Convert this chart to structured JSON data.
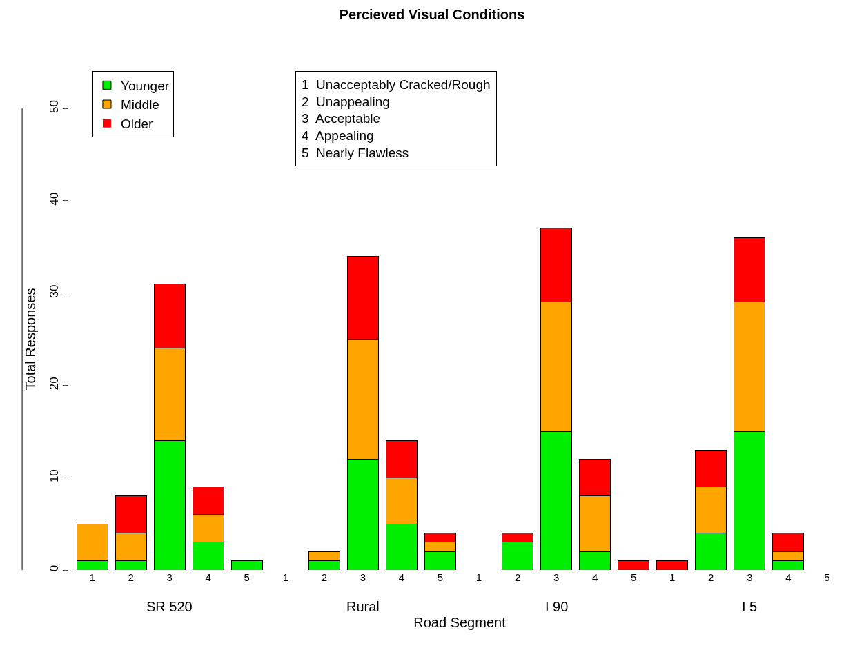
{
  "chart_data": {
    "type": "bar",
    "title": "Percieved Visual Conditions",
    "xlabel": "Road Segment",
    "ylabel": "Total Responses",
    "categories": [
      "1",
      "2",
      "3",
      "4",
      "5",
      "1",
      "2",
      "3",
      "4",
      "5",
      "1",
      "2",
      "3",
      "4",
      "5",
      "1",
      "2",
      "3",
      "4",
      "5"
    ],
    "stacked": true,
    "series": [
      {
        "name": "Younger",
        "color": "#00ee00",
        "values": [
          1,
          1,
          14,
          3,
          1,
          0,
          1,
          12,
          5,
          2,
          0,
          3,
          15,
          2,
          0,
          0,
          4,
          15,
          1,
          0
        ]
      },
      {
        "name": "Middle",
        "color": "#ffa500",
        "values": [
          4,
          3,
          10,
          3,
          0,
          0,
          1,
          13,
          5,
          1,
          0,
          0,
          14,
          6,
          0,
          0,
          5,
          14,
          1,
          0
        ]
      },
      {
        "name": "Older",
        "color": "#ff0000",
        "values": [
          0,
          4,
          7,
          3,
          0,
          0,
          0,
          9,
          4,
          1,
          0,
          1,
          8,
          4,
          1,
          1,
          4,
          7,
          2,
          0
        ]
      }
    ],
    "annotations": [
      "1  Unacceptably Cracked/Rough\n2  Unappealing\n3  Acceptable\n4  Appealing\n5  Nearly Flawless",
      "SR 520",
      "Rural",
      "I 90",
      "I 5"
    ],
    "ylim": [
      0,
      50
    ],
    "yticks": [
      0,
      10,
      20,
      30,
      40,
      50
    ],
    "grid": false,
    "legend": "top left"
  }
}
